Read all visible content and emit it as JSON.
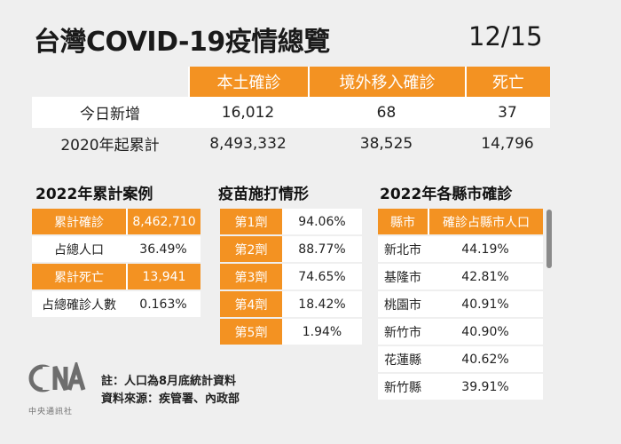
{
  "header": {
    "title": "台灣COVID-19疫情總覽",
    "date": "12/15"
  },
  "summary": {
    "columns": [
      "本土確診",
      "境外移入確診",
      "死亡"
    ],
    "rows": [
      {
        "label": "今日新增",
        "values": [
          "16,012",
          "68",
          "37"
        ]
      },
      {
        "label": "2020年起累計",
        "values": [
          "8,493,332",
          "38,525",
          "14,796"
        ]
      }
    ]
  },
  "cumulative": {
    "title": "2022年累計案例",
    "rows": [
      {
        "label": "累計確診",
        "value": "8,462,710"
      },
      {
        "label": "占總人口",
        "value": "36.49%"
      },
      {
        "label": "累計死亡",
        "value": "13,941"
      },
      {
        "label": "占總確診人數",
        "value": "0.163%"
      }
    ]
  },
  "vaccine": {
    "title": "疫苗施打情形",
    "rows": [
      {
        "label": "第1劑",
        "value": "94.06%"
      },
      {
        "label": "第2劑",
        "value": "88.77%"
      },
      {
        "label": "第3劑",
        "value": "74.65%"
      },
      {
        "label": "第4劑",
        "value": "18.42%"
      },
      {
        "label": "第5劑",
        "value": "1.94%"
      }
    ]
  },
  "counties": {
    "title": "2022年各縣市確診",
    "headers": [
      "縣市",
      "確診占縣市人口"
    ],
    "rows": [
      {
        "label": "新北市",
        "value": "44.19%"
      },
      {
        "label": "基隆市",
        "value": "42.81%"
      },
      {
        "label": "桃園市",
        "value": "40.91%"
      },
      {
        "label": "新竹市",
        "value": "40.90%"
      },
      {
        "label": "花蓮縣",
        "value": "40.62%"
      },
      {
        "label": "新竹縣",
        "value": "39.91%"
      }
    ]
  },
  "notes": {
    "note": "註：人口為8月底統計資料",
    "source": "資料來源：疾管署、內政部"
  },
  "logo": {
    "text": "中央通訊社",
    "mark": "CNA"
  },
  "colors": {
    "accent": "#f39222",
    "background": "#efefef"
  }
}
